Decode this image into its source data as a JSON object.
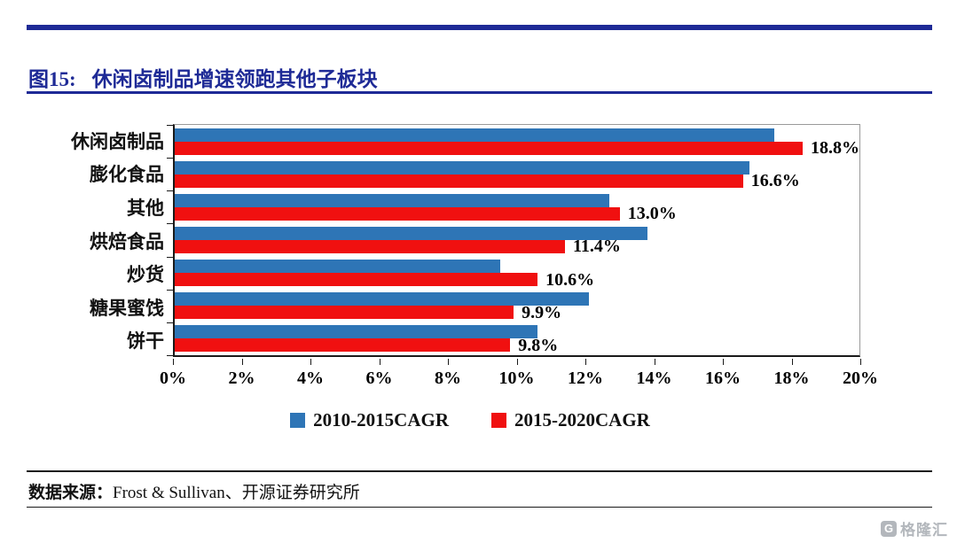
{
  "title": {
    "prefix": "图15:",
    "text": "休闲卤制品增速领跑其他子板块"
  },
  "colors": {
    "navy": "#1E2A96",
    "blue": "#2E75B6",
    "red": "#F01010"
  },
  "chart_data": {
    "type": "bar",
    "orientation": "horizontal",
    "title": "休闲卤制品增速领跑其他子板块",
    "categories": [
      "休闲卤制品",
      "膨化食品",
      "其他",
      "烘焙食品",
      "炒货",
      "糖果蜜饯",
      "饼干"
    ],
    "series": [
      {
        "name": "2010-2015CAGR",
        "color": "#2E75B6",
        "values": [
          17.5,
          16.8,
          12.7,
          13.8,
          9.5,
          12.1,
          10.6
        ]
      },
      {
        "name": "2015-2020CAGR",
        "color": "#F01010",
        "values": [
          18.8,
          16.6,
          13.0,
          11.4,
          10.6,
          9.9,
          9.8
        ]
      }
    ],
    "data_labels": [
      "18.8%",
      "16.6%",
      "13.0%",
      "11.4%",
      "10.6%",
      "9.9%",
      "9.8%"
    ],
    "xlim": [
      0,
      20
    ],
    "x_ticks": [
      "0%",
      "2%",
      "4%",
      "6%",
      "8%",
      "10%",
      "12%",
      "14%",
      "16%",
      "18%",
      "20%"
    ],
    "xlabel": "",
    "ylabel": "",
    "grid": false,
    "legend_position": "bottom"
  },
  "legend": [
    {
      "label": "2010-2015CAGR",
      "color": "#2E75B6"
    },
    {
      "label": "2015-2020CAGR",
      "color": "#F01010"
    }
  ],
  "footer": {
    "label": "数据来源：",
    "source": "Frost & Sullivan、开源证券研究所"
  },
  "watermark": {
    "logo_letter": "G",
    "name": "格隆汇"
  }
}
